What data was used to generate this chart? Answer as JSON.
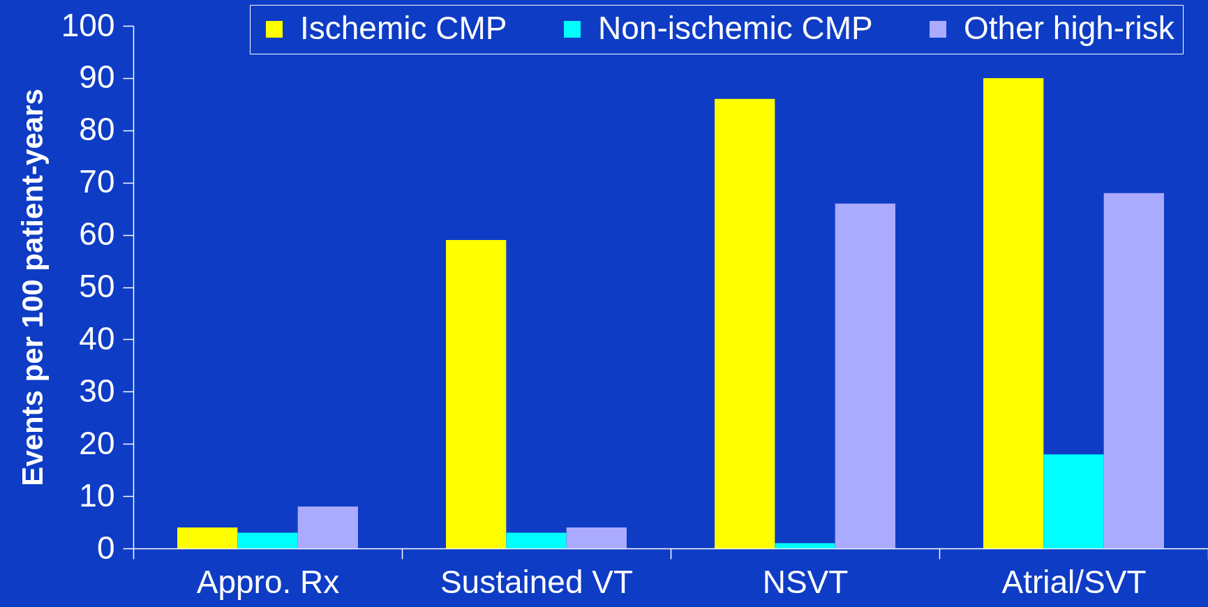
{
  "chart_data": {
    "type": "bar",
    "ylabel": "Events per 100 patient-years",
    "categories": [
      "Appro.  Rx",
      "Sustained VT",
      "NSVT",
      "Atrial/SVT"
    ],
    "series": [
      {
        "name": "Ischemic CMP",
        "color": "#ffff00",
        "values": [
          4,
          59,
          86,
          90
        ]
      },
      {
        "name": "Non-ischemic CMP",
        "color": "#00ffff",
        "values": [
          3,
          3,
          1,
          18
        ]
      },
      {
        "name": "Other high-risk",
        "color": "#aaaaff",
        "values": [
          8,
          4,
          66,
          68
        ]
      }
    ],
    "ylim": [
      0,
      100
    ],
    "yticks": [
      0,
      10,
      20,
      30,
      40,
      50,
      60,
      70,
      80,
      90,
      100
    ],
    "grid": false,
    "legend": "top right"
  }
}
